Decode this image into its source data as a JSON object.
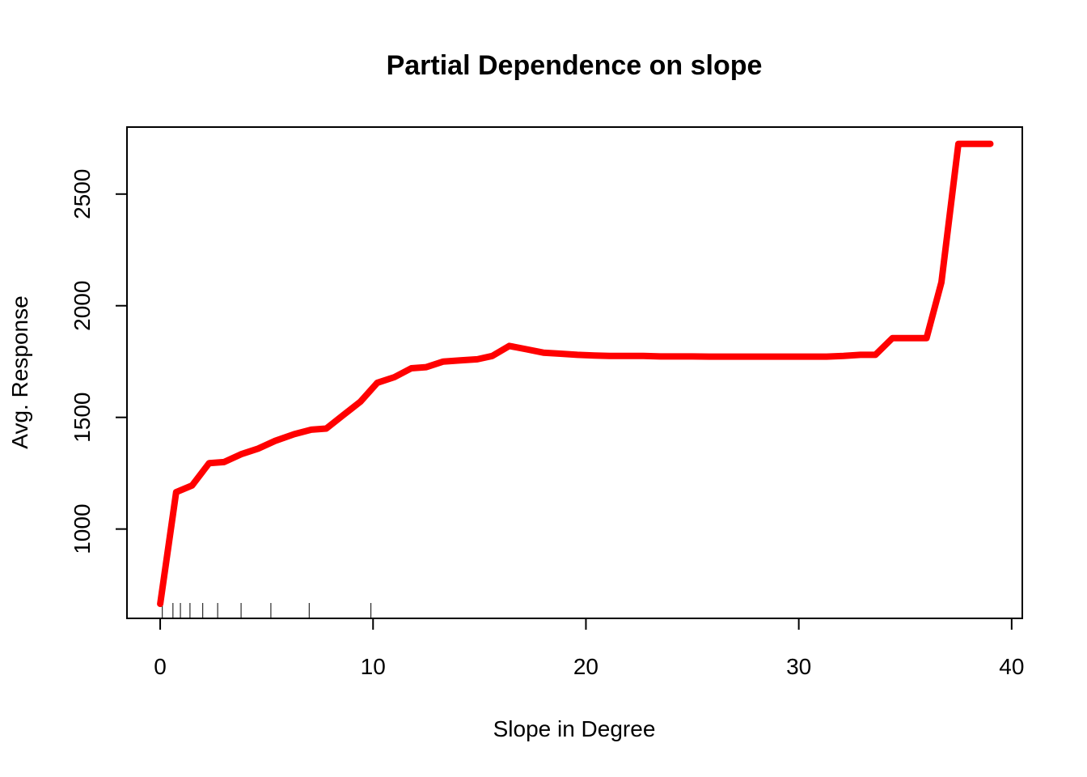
{
  "chart_data": {
    "type": "line",
    "title": "Partial Dependence on slope",
    "xlabel": "Slope in Degree",
    "ylabel": "Avg. Response",
    "xlim": [
      -1.56,
      40.5
    ],
    "ylim": [
      600,
      2800
    ],
    "xticks": [
      0,
      10,
      20,
      30,
      40
    ],
    "yticks": [
      1000,
      1500,
      2000,
      2500
    ],
    "series": [
      {
        "color": "#ff0000",
        "x": [
          0,
          0.75,
          1.5,
          2.3,
          3.0,
          3.8,
          4.6,
          5.4,
          6.3,
          7.1,
          7.8,
          8.6,
          9.4,
          10.2,
          11.0,
          11.8,
          12.5,
          13.3,
          14.1,
          14.9,
          15.6,
          16.4,
          17.2,
          18.0,
          18.8,
          19.6,
          20.4,
          21.1,
          21.9,
          22.7,
          23.5,
          24.3,
          25.0,
          25.8,
          26.6,
          27.4,
          28.2,
          29.0,
          29.7,
          30.5,
          31.3,
          32.1,
          32.9,
          33.6,
          34.4,
          35.2,
          36.0,
          36.7,
          37.5,
          38.3,
          39.0
        ],
        "y": [
          665,
          1165,
          1195,
          1295,
          1300,
          1335,
          1360,
          1395,
          1425,
          1445,
          1450,
          1510,
          1570,
          1655,
          1680,
          1720,
          1725,
          1750,
          1755,
          1760,
          1775,
          1820,
          1805,
          1790,
          1785,
          1780,
          1777,
          1775,
          1775,
          1775,
          1773,
          1773,
          1773,
          1772,
          1772,
          1772,
          1772,
          1772,
          1772,
          1772,
          1772,
          1775,
          1780,
          1780,
          1855,
          1855,
          1855,
          2105,
          2725,
          2725,
          2725
        ]
      }
    ],
    "rug": [
      0.1,
      0.6,
      0.95,
      1.4,
      2.0,
      2.7,
      3.8,
      5.2,
      7.0,
      9.9
    ],
    "grid": false,
    "legend": "none"
  }
}
